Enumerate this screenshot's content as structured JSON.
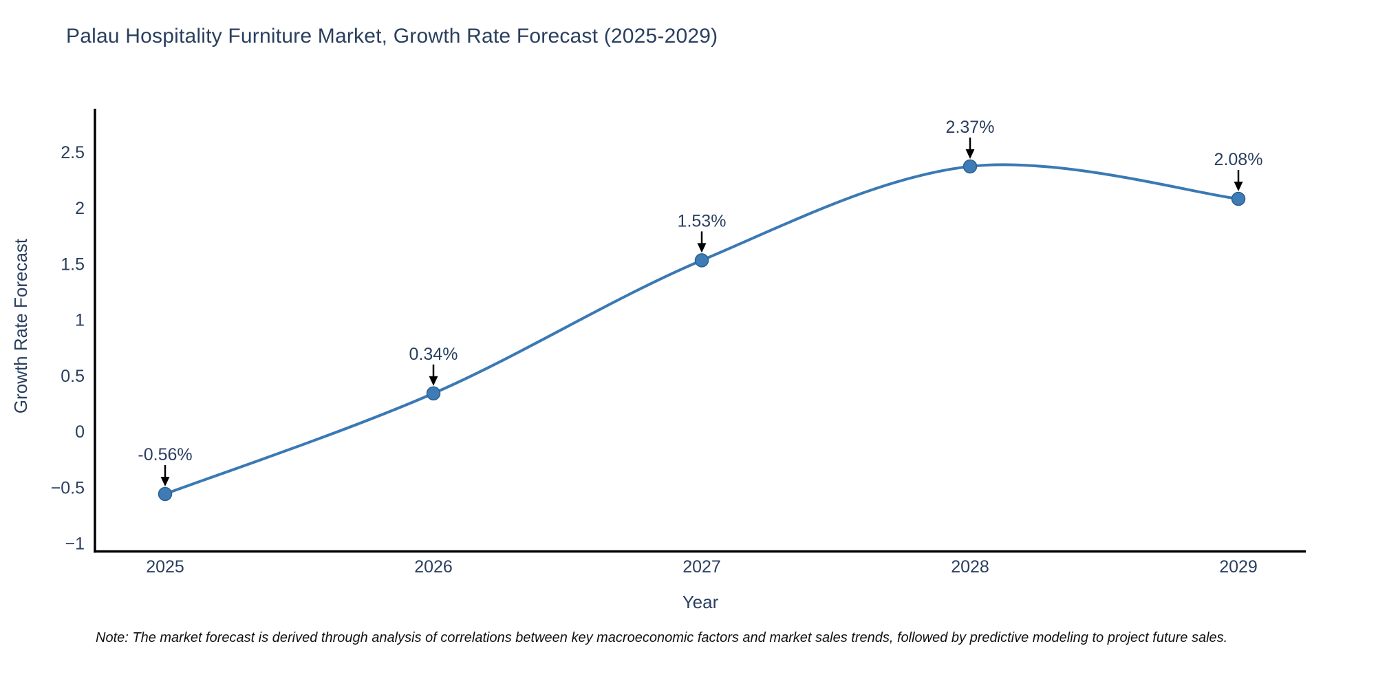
{
  "note": "Note: The market forecast is derived through analysis of correlations between key macroeconomic factors and market sales trends, followed by predictive modeling to project future sales.",
  "colors": {
    "background": "#ffffff",
    "line": "#3a79b4",
    "marker_fill": "#3f7cb6",
    "marker_edge": "#2b608f",
    "axis": "#000000",
    "arrow": "#000000",
    "chart_text": "#2a3f5f",
    "note_text": "#111111"
  },
  "chart_data": {
    "type": "line",
    "title": "Palau Hospitality Furniture Market, Growth Rate Forecast (2025-2029)",
    "categories": [
      "2025",
      "2026",
      "2027",
      "2028",
      "2029"
    ],
    "x": [
      2025,
      2026,
      2027,
      2028,
      2029
    ],
    "values": [
      -0.56,
      0.34,
      1.53,
      2.37,
      2.08
    ],
    "point_labels": [
      "-0.56%",
      "0.34%",
      "1.53%",
      "2.37%",
      "2.08%"
    ],
    "xlabel": "Year",
    "ylabel": "Growth Rate Forecast",
    "y_ticks": [
      2.5,
      2,
      1.5,
      1,
      0.5,
      0,
      -0.5,
      -1
    ],
    "y_tick_labels": [
      "2.5",
      "2",
      "1.5",
      "1",
      "0.5",
      "0",
      "−0.5",
      "−1"
    ],
    "ylim": [
      -1.08,
      2.89
    ],
    "line_shape": "spline",
    "marker": "circle",
    "grid": false,
    "legend": "none",
    "annotations_arrows": true
  }
}
